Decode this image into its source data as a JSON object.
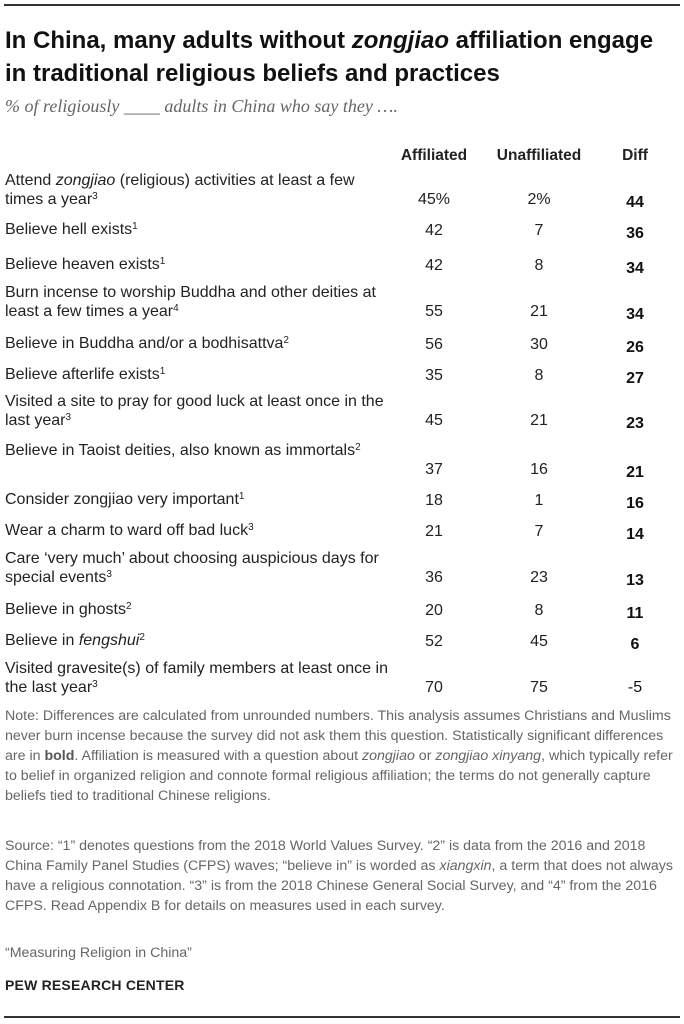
{
  "header": {
    "title_part1": "In China, many adults without ",
    "title_italic": "zongjiao",
    "title_part2": " affiliation engage in traditional religious beliefs and practices",
    "subtitle": "% of religiously ____ adults in China who say they …."
  },
  "chart_data": {
    "type": "table",
    "columns": [
      "Affiliated",
      "Unaffiliated",
      "Diff"
    ],
    "rows": [
      {
        "pre": "Attend ",
        "italic": "zongjiao",
        "post": " (religious) activities at least a few times a year",
        "sup": "3",
        "affiliated": "45%",
        "unaffiliated": "2%",
        "diff": "44",
        "significant": true
      },
      {
        "pre": "",
        "italic": "",
        "post": "Believe hell exists",
        "sup": "1",
        "affiliated": "42",
        "unaffiliated": "7",
        "diff": "36",
        "significant": true
      },
      {
        "pre": "",
        "italic": "",
        "post": "Believe heaven exists",
        "sup": "1",
        "affiliated": "42",
        "unaffiliated": "8",
        "diff": "34",
        "significant": true
      },
      {
        "pre": "",
        "italic": "",
        "post": "Burn incense to worship Buddha and other deities at least a few times a year",
        "sup": "4",
        "affiliated": "55",
        "unaffiliated": "21",
        "diff": "34",
        "significant": true
      },
      {
        "pre": "",
        "italic": "",
        "post": "Believe in Buddha and/or a bodhisattva",
        "sup": "2",
        "affiliated": "56",
        "unaffiliated": "30",
        "diff": "26",
        "significant": true
      },
      {
        "pre": "",
        "italic": "",
        "post": "Believe afterlife exists",
        "sup": "1",
        "affiliated": "35",
        "unaffiliated": "8",
        "diff": "27",
        "significant": true
      },
      {
        "pre": "",
        "italic": "",
        "post": "Visited a site to pray for good luck at least once in the last year",
        "sup": "3",
        "affiliated": "45",
        "unaffiliated": "21",
        "diff": "23",
        "significant": true
      },
      {
        "pre": "",
        "italic": "",
        "post": "Believe in Taoist deities, also known as immortals",
        "sup": "2",
        "affiliated": "37",
        "unaffiliated": "16",
        "diff": "21",
        "significant": true
      },
      {
        "pre": "",
        "italic": "",
        "post": "Consider zongjiao very important",
        "sup": "1",
        "affiliated": "18",
        "unaffiliated": "1",
        "diff": "16",
        "significant": true
      },
      {
        "pre": "",
        "italic": "",
        "post": "Wear a charm to ward off bad luck",
        "sup": "3",
        "affiliated": "21",
        "unaffiliated": "7",
        "diff": "14",
        "significant": true
      },
      {
        "pre": "",
        "italic": "",
        "post": "Care ‘very much’ about choosing auspicious days for special events",
        "sup": "3",
        "affiliated": "36",
        "unaffiliated": "23",
        "diff": "13",
        "significant": true
      },
      {
        "pre": "",
        "italic": "",
        "post": "Believe in ghosts",
        "sup": "2",
        "affiliated": "20",
        "unaffiliated": "8",
        "diff": "11",
        "significant": true
      },
      {
        "pre": "Believe in ",
        "italic": "fengshui",
        "post": "",
        "sup": "2",
        "affiliated": "52",
        "unaffiliated": "45",
        "diff": "6",
        "significant": true
      },
      {
        "pre": "",
        "italic": "",
        "post": "Visited gravesite(s) of family members at least once in the last year",
        "sup": "3",
        "affiliated": "70",
        "unaffiliated": "75",
        "diff": "-5",
        "significant": false
      }
    ]
  },
  "footer": {
    "note_part1": "Note: Differences are calculated from unrounded numbers. This analysis assumes Christians and Muslims never burn incense because the survey did not ask them this question. Statistically significant differences are in ",
    "note_bold": "bold",
    "note_part2": ". Affiliation is measured with a question about ",
    "note_italic1": "zongjiao",
    "note_part3": " or ",
    "note_italic2": "zongjiao xinyang",
    "note_part4": ", which typically refer to belief in organized religion and connote formal religious affiliation; the terms do not generally capture beliefs tied to traditional Chinese religions.",
    "source_part1": "Source: “1” denotes questions from the 2018 World Values Survey. “2” is data from the 2016 and 2018 China Family Panel Studies (CFPS) waves; “believe in” is worded as ",
    "source_italic": "xiangxin",
    "source_part2": ", a term that does not always have a religious connotation. “3” is from the 2018 Chinese General Social Survey, and “4” from the 2016 CFPS. Read Appendix B for details on measures used in each survey.",
    "report": "“Measuring Religion in China”",
    "org": "PEW RESEARCH CENTER"
  }
}
